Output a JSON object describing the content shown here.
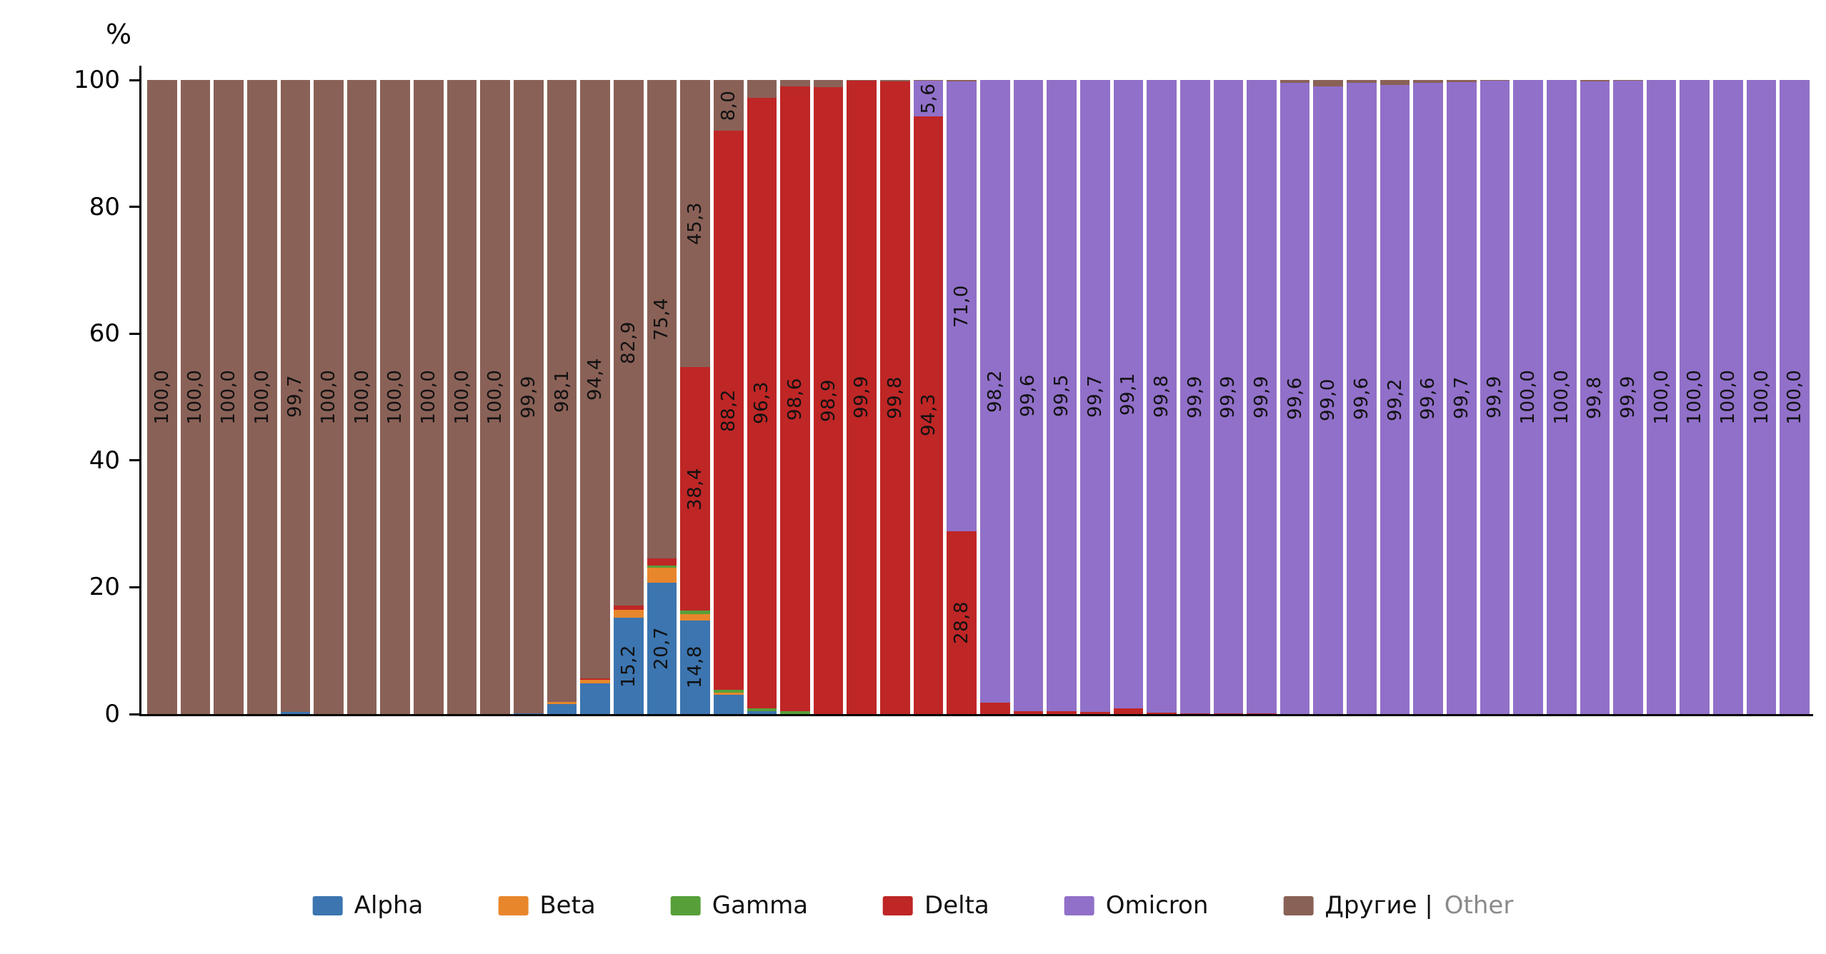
{
  "chart_data": {
    "type": "bar",
    "subtype": "stacked-percent",
    "title": "",
    "xlabel": "",
    "ylabel": "%",
    "ylim": [
      0,
      100
    ],
    "yticks": [
      0,
      20,
      40,
      60,
      80,
      100
    ],
    "grid": false,
    "legend_position": "bottom",
    "legend": [
      {
        "key": "alpha",
        "label": "Alpha",
        "color": "#3c75b0"
      },
      {
        "key": "beta",
        "label": "Beta",
        "color": "#e8862c"
      },
      {
        "key": "gamma",
        "label": "Gamma",
        "color": "#57a039"
      },
      {
        "key": "delta",
        "label": "Delta",
        "color": "#bf2626"
      },
      {
        "key": "omicron",
        "label": "Omicron",
        "color": "#9170c9"
      },
      {
        "key": "other",
        "label": "Другие |",
        "label_secondary": "Other",
        "color": "#8a6157"
      }
    ],
    "bars": [
      [
        [
          "other",
          100.0,
          "100,0"
        ]
      ],
      [
        [
          "other",
          100.0,
          "100,0"
        ]
      ],
      [
        [
          "other",
          100.0,
          "100,0"
        ]
      ],
      [
        [
          "other",
          100.0,
          "100,0"
        ]
      ],
      [
        [
          "alpha",
          0.3
        ],
        [
          "other",
          99.7,
          "99,7"
        ]
      ],
      [
        [
          "other",
          100.0,
          "100,0"
        ]
      ],
      [
        [
          "other",
          100.0,
          "100,0"
        ]
      ],
      [
        [
          "other",
          100.0,
          "100,0"
        ]
      ],
      [
        [
          "other",
          100.0,
          "100,0"
        ]
      ],
      [
        [
          "other",
          100.0,
          "100,0"
        ]
      ],
      [
        [
          "other",
          100.0,
          "100,0"
        ]
      ],
      [
        [
          "alpha",
          0.1
        ],
        [
          "other",
          99.9,
          "99,9"
        ]
      ],
      [
        [
          "alpha",
          1.6
        ],
        [
          "beta",
          0.3
        ],
        [
          "other",
          98.1,
          "98,1"
        ]
      ],
      [
        [
          "alpha",
          4.8
        ],
        [
          "beta",
          0.6
        ],
        [
          "delta",
          0.2
        ],
        [
          "other",
          94.4,
          "94,4"
        ]
      ],
      [
        [
          "alpha",
          15.2,
          "15,2"
        ],
        [
          "beta",
          1.2
        ],
        [
          "delta",
          0.7
        ],
        [
          "other",
          82.9,
          "82,9"
        ]
      ],
      [
        [
          "alpha",
          20.7,
          "20,7"
        ],
        [
          "beta",
          2.4
        ],
        [
          "gamma",
          0.3
        ],
        [
          "delta",
          1.2
        ],
        [
          "other",
          75.4,
          "75,4"
        ]
      ],
      [
        [
          "alpha",
          14.8,
          "14,8"
        ],
        [
          "beta",
          1.0
        ],
        [
          "gamma",
          0.5
        ],
        [
          "delta",
          38.4,
          "38,4"
        ],
        [
          "other",
          45.3,
          "45,3"
        ]
      ],
      [
        [
          "alpha",
          3.0
        ],
        [
          "beta",
          0.4
        ],
        [
          "gamma",
          0.4
        ],
        [
          "delta",
          88.2,
          "88,2"
        ],
        [
          "other",
          8.0,
          "8,0"
        ]
      ],
      [
        [
          "alpha",
          0.5
        ],
        [
          "gamma",
          0.4
        ],
        [
          "delta",
          96.3,
          "96,3"
        ],
        [
          "other",
          2.8
        ]
      ],
      [
        [
          "gamma",
          0.4
        ],
        [
          "delta",
          98.6,
          "98,6"
        ],
        [
          "other",
          1.0
        ]
      ],
      [
        [
          "delta",
          98.9,
          "98,9"
        ],
        [
          "other",
          1.1
        ]
      ],
      [
        [
          "delta",
          99.9,
          "99,9"
        ],
        [
          "other",
          0.1
        ]
      ],
      [
        [
          "delta",
          99.8,
          "99,8"
        ],
        [
          "other",
          0.2
        ]
      ],
      [
        [
          "delta",
          94.3,
          "94,3"
        ],
        [
          "omicron",
          5.6,
          "5,6"
        ],
        [
          "other",
          0.1
        ]
      ],
      [
        [
          "delta",
          28.8,
          "28,8"
        ],
        [
          "omicron",
          71.0,
          "71,0"
        ],
        [
          "other",
          0.2
        ]
      ],
      [
        [
          "delta",
          1.8
        ],
        [
          "omicron",
          98.2,
          "98,2"
        ]
      ],
      [
        [
          "delta",
          0.4
        ],
        [
          "omicron",
          99.6,
          "99,6"
        ]
      ],
      [
        [
          "delta",
          0.5
        ],
        [
          "omicron",
          99.5,
          "99,5"
        ]
      ],
      [
        [
          "delta",
          0.3
        ],
        [
          "omicron",
          99.7,
          "99,7"
        ]
      ],
      [
        [
          "delta",
          0.9
        ],
        [
          "omicron",
          99.1,
          "99,1"
        ]
      ],
      [
        [
          "delta",
          0.2
        ],
        [
          "omicron",
          99.8,
          "99,8"
        ]
      ],
      [
        [
          "delta",
          0.1
        ],
        [
          "omicron",
          99.9,
          "99,9"
        ]
      ],
      [
        [
          "delta",
          0.1
        ],
        [
          "omicron",
          99.9,
          "99,9"
        ]
      ],
      [
        [
          "delta",
          0.1
        ],
        [
          "omicron",
          99.9,
          "99,9"
        ]
      ],
      [
        [
          "omicron",
          99.6,
          "99,6"
        ],
        [
          "other",
          0.4
        ]
      ],
      [
        [
          "omicron",
          99.0,
          "99,0"
        ],
        [
          "other",
          1.0
        ]
      ],
      [
        [
          "omicron",
          99.6,
          "99,6"
        ],
        [
          "other",
          0.4
        ]
      ],
      [
        [
          "omicron",
          99.2,
          "99,2"
        ],
        [
          "other",
          0.8
        ]
      ],
      [
        [
          "omicron",
          99.6,
          "99,6"
        ],
        [
          "other",
          0.4
        ]
      ],
      [
        [
          "omicron",
          99.7,
          "99,7"
        ],
        [
          "other",
          0.3
        ]
      ],
      [
        [
          "omicron",
          99.9,
          "99,9"
        ],
        [
          "other",
          0.1
        ]
      ],
      [
        [
          "omicron",
          100.0,
          "100,0"
        ]
      ],
      [
        [
          "omicron",
          100.0,
          "100,0"
        ]
      ],
      [
        [
          "omicron",
          99.8,
          "99,8"
        ],
        [
          "other",
          0.2
        ]
      ],
      [
        [
          "omicron",
          99.9,
          "99,9"
        ],
        [
          "other",
          0.1
        ]
      ],
      [
        [
          "omicron",
          100.0,
          "100,0"
        ]
      ],
      [
        [
          "omicron",
          100.0,
          "100,0"
        ]
      ],
      [
        [
          "omicron",
          100.0,
          "100,0"
        ]
      ],
      [
        [
          "omicron",
          100.0,
          "100,0"
        ]
      ],
      [
        [
          "omicron",
          100.0,
          "100,0"
        ]
      ]
    ]
  }
}
